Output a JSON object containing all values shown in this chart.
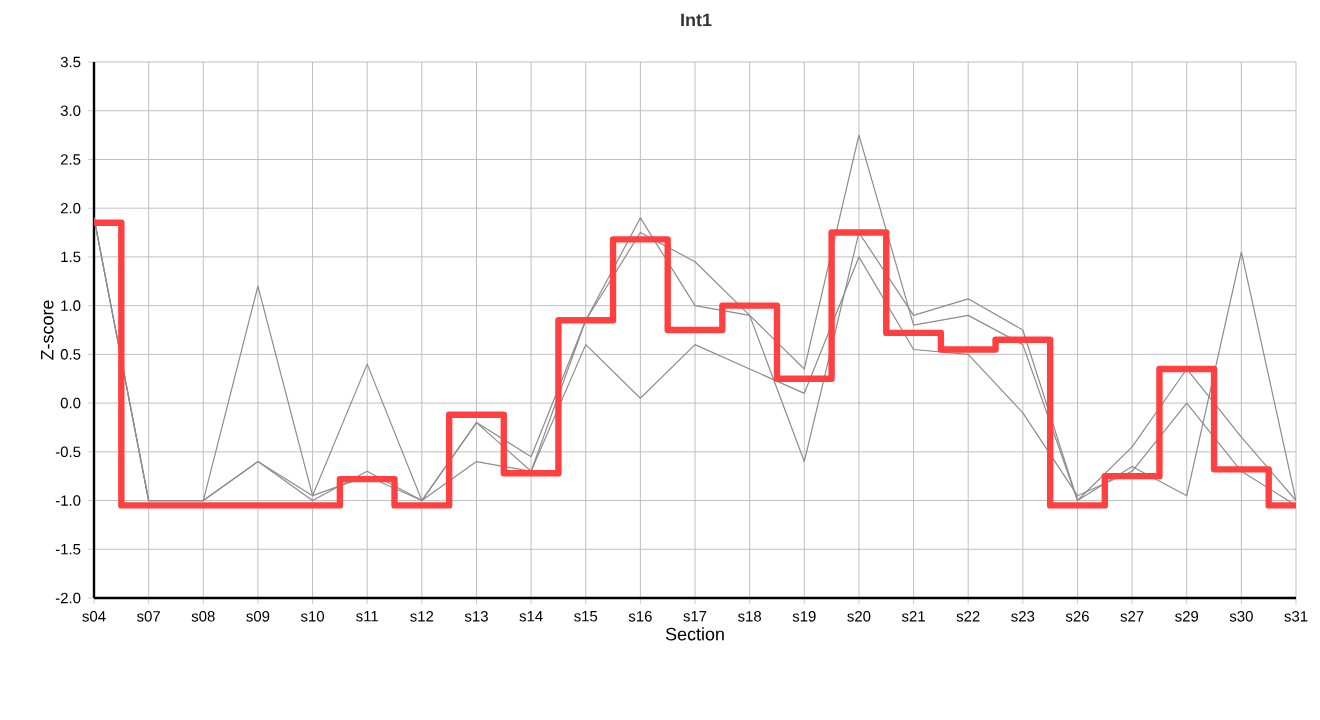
{
  "chart_data": {
    "type": "line",
    "title": "Int1",
    "xlabel": "Section",
    "ylabel": "Z-score",
    "categories": [
      "s04",
      "s07",
      "s08",
      "s09",
      "s10",
      "s11",
      "s12",
      "s13",
      "s14",
      "s15",
      "s16",
      "s17",
      "s18",
      "s19",
      "s20",
      "s21",
      "s22",
      "s23",
      "s26",
      "s27",
      "s29",
      "s30",
      "s31"
    ],
    "series": [
      {
        "color": "#8c8c8c",
        "values": [
          1.9,
          -1.0,
          -1.0,
          1.2,
          -0.95,
          0.4,
          -1.0,
          -0.2,
          -0.55,
          0.85,
          1.75,
          1.45,
          0.9,
          0.35,
          2.75,
          0.8,
          0.9,
          0.6,
          -1.0,
          -0.65,
          -0.95,
          1.55,
          -1.0
        ]
      },
      {
        "color": "#8c8c8c",
        "values": [
          1.9,
          -1.0,
          -1.0,
          -0.6,
          -1.0,
          -0.7,
          -1.0,
          -0.2,
          -0.7,
          0.85,
          1.9,
          1.0,
          0.9,
          -0.6,
          1.75,
          0.9,
          1.07,
          0.75,
          -1.0,
          -0.45,
          0.35,
          -0.35,
          -1.0
        ]
      },
      {
        "color": "#8c8c8c",
        "values": [
          1.9,
          -1.0,
          -1.0,
          -0.6,
          -0.95,
          -0.75,
          -1.0,
          -0.6,
          -0.7,
          0.6,
          0.05,
          0.6,
          0.35,
          0.1,
          1.5,
          0.55,
          0.5,
          -0.1,
          -0.95,
          -0.7,
          0.0,
          -0.7,
          -1.05
        ]
      },
      {
        "type": "step",
        "color": "#ff4040",
        "values": [
          1.85,
          -1.05,
          -1.05,
          -1.05,
          -1.05,
          -0.78,
          -1.05,
          -0.12,
          -0.72,
          0.85,
          1.68,
          0.75,
          1.0,
          0.25,
          1.75,
          0.72,
          0.55,
          0.65,
          -1.05,
          -0.75,
          0.35,
          -0.68,
          -1.05
        ]
      }
    ],
    "ylim": [
      -2.0,
      3.5
    ],
    "yticks": [
      {
        "value": -2.0,
        "label": "-2.0"
      },
      {
        "value": -1.5,
        "label": "-1.5"
      },
      {
        "value": -1.0,
        "label": "-1.0"
      },
      {
        "value": -0.5,
        "label": "-0.5"
      },
      {
        "value": 0.0,
        "label": "0.0"
      },
      {
        "value": 0.5,
        "label": "0.5"
      },
      {
        "value": 1.0,
        "label": "1.0"
      },
      {
        "value": 1.5,
        "label": "1.5"
      },
      {
        "value": 2.0,
        "label": "2.0"
      },
      {
        "value": 2.5,
        "label": "2.5"
      },
      {
        "value": 3.0,
        "label": "3.0"
      },
      {
        "value": 3.5,
        "label": "3.5"
      }
    ],
    "grid": true,
    "marker": "none"
  }
}
